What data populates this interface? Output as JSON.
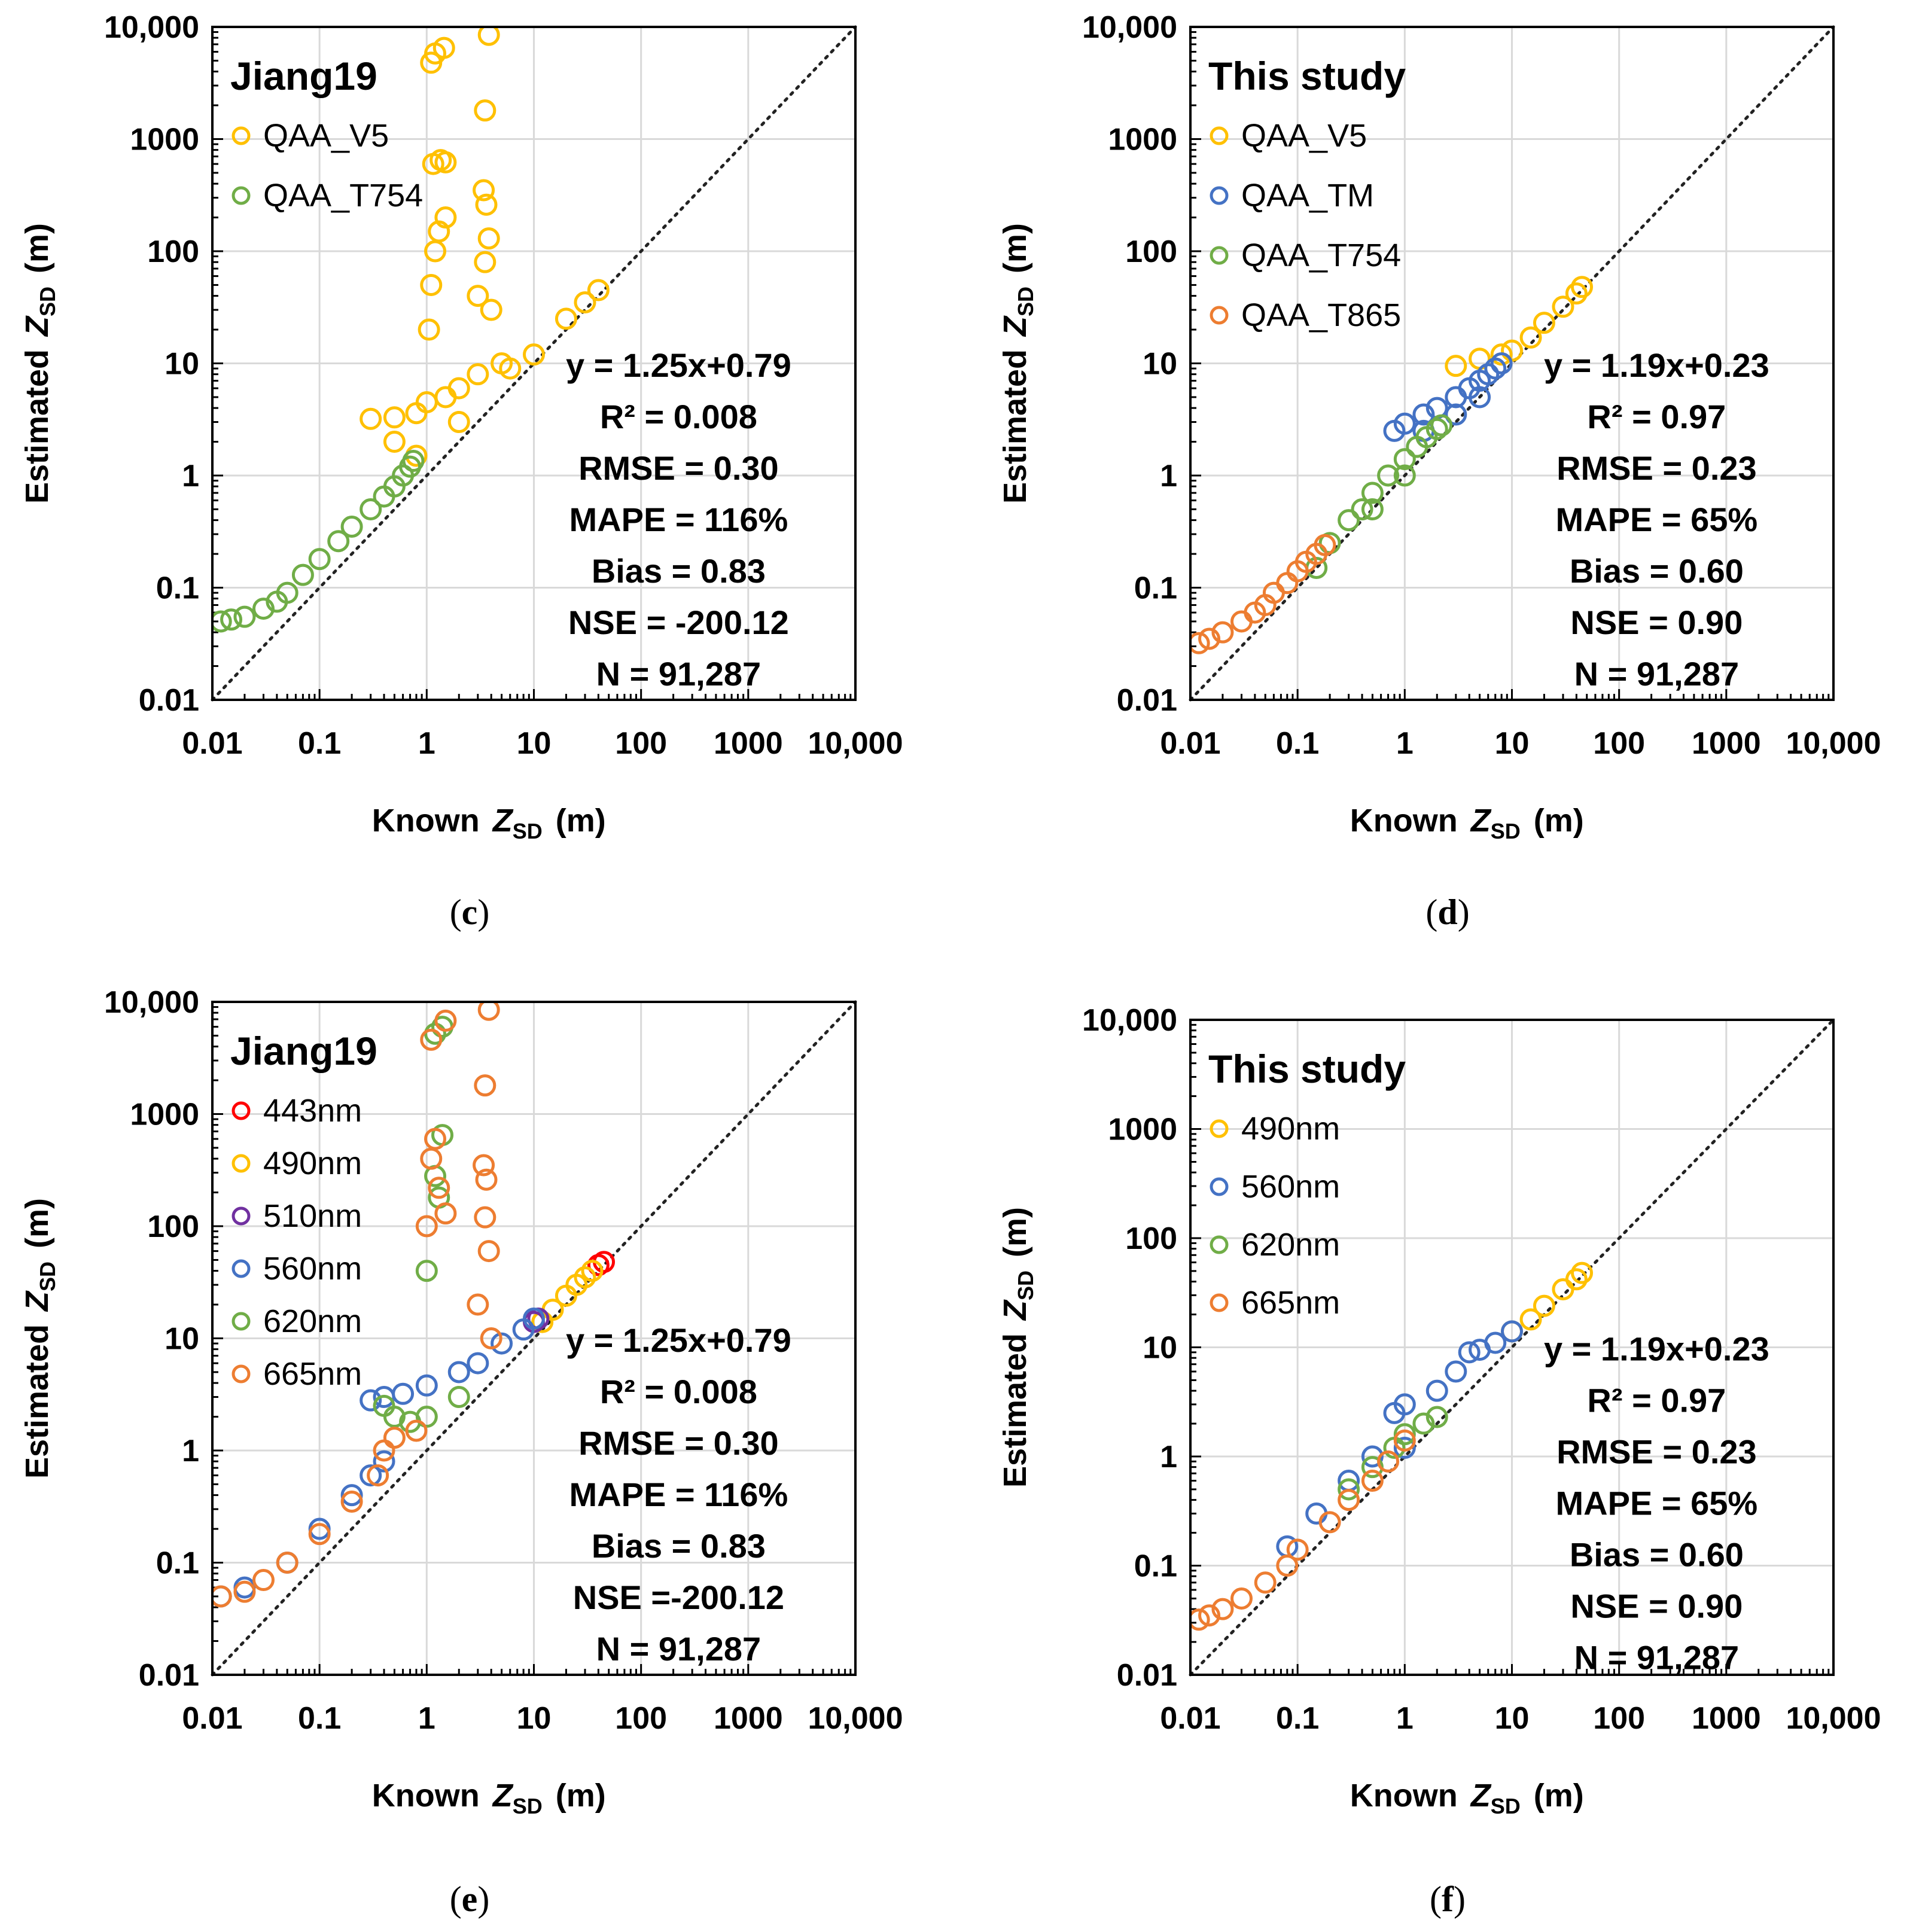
{
  "colors": {
    "QAA_V5": "#FFC000",
    "QAA_TM": "#4472C4",
    "QAA_T754": "#70AD47",
    "QAA_T865": "#ED7D31",
    "443nm": "#FF0000",
    "490nm": "#FFC000",
    "510nm": "#7030A0",
    "560nm": "#4472C4",
    "620nm": "#70AD47",
    "665nm": "#ED7D31",
    "one_to_one": "#222222"
  },
  "chart_data": [
    {
      "id": "c",
      "type": "scatter",
      "panel_label": "c",
      "title": "Jiang19",
      "xlabel": "Known",
      "ylabel": "Estimated",
      "axis_symbol": "Z",
      "axis_sub": "SD",
      "axis_unit": "(m)",
      "xscale": "log",
      "yscale": "log",
      "xlim": [
        0.01,
        10000
      ],
      "ylim": [
        0.01,
        10000
      ],
      "x_ticks": [
        "0.01",
        "0.1",
        "1",
        "10",
        "100",
        "1000",
        "10,000"
      ],
      "y_ticks": [
        "0.01",
        "0.1",
        "1",
        "10",
        "100",
        "1000",
        "10,000"
      ],
      "grid": true,
      "reference_line": "1:1",
      "legend_position": "top-left",
      "series": [
        {
          "name": "QAA_V5",
          "points": [
            [
              0.3,
              3.2
            ],
            [
              0.5,
              3.3
            ],
            [
              0.8,
              3.6
            ],
            [
              1.0,
              4.5
            ],
            [
              1.5,
              5
            ],
            [
              2,
              6
            ],
            [
              3,
              8
            ],
            [
              5,
              10
            ],
            [
              10,
              12
            ],
            [
              20,
              25
            ],
            [
              30,
              35
            ],
            [
              40,
              45
            ],
            [
              1.05,
              20
            ],
            [
              1.1,
              50
            ],
            [
              1.2,
              100
            ],
            [
              1.3,
              150
            ],
            [
              1.5,
              200
            ],
            [
              1.15,
              600
            ],
            [
              1.35,
              650
            ],
            [
              1.5,
              620
            ],
            [
              1.1,
              4800
            ],
            [
              1.2,
              5800
            ],
            [
              1.45,
              6500
            ],
            [
              3.4,
              350
            ],
            [
              3.6,
              260
            ],
            [
              3.8,
              130
            ],
            [
              3.0,
              40
            ],
            [
              3.5,
              80
            ],
            [
              4.0,
              30
            ],
            [
              3.5,
              1800
            ],
            [
              3.8,
              8500
            ],
            [
              0.5,
              2.0
            ],
            [
              0.8,
              1.5
            ],
            [
              2.0,
              3.0
            ],
            [
              6,
              9
            ]
          ]
        },
        {
          "name": "QAA_T754",
          "points": [
            [
              0.012,
              0.05
            ],
            [
              0.015,
              0.052
            ],
            [
              0.02,
              0.055
            ],
            [
              0.03,
              0.065
            ],
            [
              0.04,
              0.075
            ],
            [
              0.05,
              0.09
            ],
            [
              0.07,
              0.13
            ],
            [
              0.1,
              0.18
            ],
            [
              0.15,
              0.26
            ],
            [
              0.2,
              0.35
            ],
            [
              0.3,
              0.5
            ],
            [
              0.4,
              0.65
            ],
            [
              0.5,
              0.8
            ],
            [
              0.6,
              1.0
            ],
            [
              0.7,
              1.2
            ],
            [
              0.75,
              1.35
            ]
          ]
        }
      ],
      "annotations": [
        "y = 1.25x+0.79",
        "R² = 0.008",
        "RMSE = 0.30",
        "MAPE = 116%",
        "Bias = 0.83",
        "NSE = -200.12",
        "N = 91,287"
      ]
    },
    {
      "id": "d",
      "type": "scatter",
      "panel_label": "d",
      "title": "This study",
      "xlabel": "Known",
      "ylabel": "Estimated",
      "axis_symbol": "Z",
      "axis_sub": "SD",
      "axis_unit": "(m)",
      "xscale": "log",
      "yscale": "log",
      "xlim": [
        0.01,
        10000
      ],
      "ylim": [
        0.01,
        10000
      ],
      "x_ticks": [
        "0.01",
        "0.1",
        "1",
        "10",
        "100",
        "1000",
        "10,000"
      ],
      "y_ticks": [
        "0.01",
        "0.1",
        "1",
        "10",
        "100",
        "1000",
        "10,000"
      ],
      "grid": true,
      "reference_line": "1:1",
      "legend_position": "top-left",
      "series": [
        {
          "name": "QAA_V5",
          "points": [
            [
              3,
              9.5
            ],
            [
              5,
              11
            ],
            [
              8,
              12
            ],
            [
              10,
              13
            ],
            [
              15,
              17
            ],
            [
              20,
              23
            ],
            [
              30,
              32
            ],
            [
              40,
              42
            ],
            [
              45,
              48
            ]
          ]
        },
        {
          "name": "QAA_TM",
          "points": [
            [
              0.8,
              2.5
            ],
            [
              1.0,
              2.9
            ],
            [
              1.5,
              3.5
            ],
            [
              2,
              4
            ],
            [
              3,
              5
            ],
            [
              4,
              6
            ],
            [
              5,
              7
            ],
            [
              6,
              8
            ],
            [
              7,
              9
            ],
            [
              8,
              10
            ],
            [
              1.5,
              2.5
            ],
            [
              3,
              3.5
            ],
            [
              5,
              5
            ]
          ]
        },
        {
          "name": "QAA_T754",
          "points": [
            [
              0.15,
              0.15
            ],
            [
              0.2,
              0.25
            ],
            [
              0.3,
              0.4
            ],
            [
              0.4,
              0.5
            ],
            [
              0.5,
              0.7
            ],
            [
              0.7,
              1.0
            ],
            [
              1.0,
              1.4
            ],
            [
              1.3,
              1.8
            ],
            [
              1.6,
              2.2
            ],
            [
              2.0,
              2.6
            ],
            [
              2.2,
              2.8
            ],
            [
              0.5,
              0.5
            ],
            [
              1.0,
              1.0
            ]
          ]
        },
        {
          "name": "QAA_T865",
          "points": [
            [
              0.012,
              0.032
            ],
            [
              0.015,
              0.035
            ],
            [
              0.02,
              0.04
            ],
            [
              0.03,
              0.05
            ],
            [
              0.04,
              0.06
            ],
            [
              0.05,
              0.07
            ],
            [
              0.06,
              0.09
            ],
            [
              0.08,
              0.11
            ],
            [
              0.1,
              0.14
            ],
            [
              0.12,
              0.17
            ],
            [
              0.15,
              0.2
            ],
            [
              0.18,
              0.24
            ]
          ]
        }
      ],
      "annotations": [
        "y = 1.19x+0.23",
        "R² = 0.97",
        "RMSE = 0.23",
        "MAPE = 65%",
        "Bias = 0.60",
        "NSE = 0.90",
        "N = 91,287"
      ]
    },
    {
      "id": "e",
      "type": "scatter",
      "panel_label": "e",
      "title": "Jiang19",
      "xlabel": "Known",
      "ylabel": "Estimated",
      "axis_symbol": "Z",
      "axis_sub": "SD",
      "axis_unit": "(m)",
      "xscale": "log",
      "yscale": "log",
      "xlim": [
        0.01,
        10000
      ],
      "ylim": [
        0.01,
        10000
      ],
      "x_ticks": [
        "0.01",
        "0.1",
        "1",
        "10",
        "100",
        "1000",
        "10,000"
      ],
      "y_ticks": [
        "0.01",
        "0.1",
        "1",
        "10",
        "100",
        "1000",
        "10,000"
      ],
      "grid": true,
      "reference_line": "1:1",
      "legend_position": "top-left",
      "series": [
        {
          "name": "443nm",
          "points": [
            [
              40,
              45
            ],
            [
              45,
              48
            ]
          ]
        },
        {
          "name": "490nm",
          "points": [
            [
              12,
              14
            ],
            [
              15,
              18
            ],
            [
              20,
              24
            ],
            [
              25,
              30
            ],
            [
              30,
              35
            ],
            [
              35,
              40
            ]
          ]
        },
        {
          "name": "510nm",
          "points": [
            [
              10,
              14
            ],
            [
              11,
              15
            ]
          ]
        },
        {
          "name": "560nm",
          "points": [
            [
              0.012,
              0.05
            ],
            [
              0.02,
              0.06
            ],
            [
              0.05,
              0.1
            ],
            [
              0.1,
              0.2
            ],
            [
              0.2,
              0.4
            ],
            [
              0.3,
              0.6
            ],
            [
              0.4,
              0.8
            ],
            [
              0.3,
              2.8
            ],
            [
              0.4,
              3.0
            ],
            [
              0.6,
              3.2
            ],
            [
              1.0,
              3.8
            ],
            [
              2,
              5
            ],
            [
              3,
              6
            ],
            [
              5,
              9
            ],
            [
              8,
              12
            ],
            [
              10,
              15
            ]
          ]
        },
        {
          "name": "620nm",
          "points": [
            [
              0.4,
              2.5
            ],
            [
              0.5,
              2.0
            ],
            [
              0.7,
              1.8
            ],
            [
              1.0,
              2.0
            ],
            [
              1.2,
              280
            ],
            [
              1.3,
              180
            ],
            [
              1.4,
              650
            ],
            [
              1.0,
              40
            ],
            [
              1.2,
              5200
            ],
            [
              1.4,
              6000
            ],
            [
              2,
              3
            ]
          ]
        },
        {
          "name": "665nm",
          "points": [
            [
              0.012,
              0.05
            ],
            [
              0.02,
              0.055
            ],
            [
              0.03,
              0.07
            ],
            [
              0.05,
              0.1
            ],
            [
              0.1,
              0.18
            ],
            [
              0.2,
              0.35
            ],
            [
              0.35,
              0.6
            ],
            [
              0.4,
              1.0
            ],
            [
              0.5,
              1.3
            ],
            [
              0.8,
              1.5
            ],
            [
              1.0,
              100
            ],
            [
              1.1,
              400
            ],
            [
              1.2,
              600
            ],
            [
              1.3,
              220
            ],
            [
              1.5,
              130
            ],
            [
              1.1,
              4600
            ],
            [
              1.5,
              6800
            ],
            [
              3.4,
              350
            ],
            [
              3.6,
              260
            ],
            [
              3.5,
              120
            ],
            [
              3.8,
              60
            ],
            [
              3.5,
              1800
            ],
            [
              3.8,
              8500
            ],
            [
              3,
              20
            ],
            [
              4,
              10
            ]
          ]
        }
      ],
      "annotations": [
        "y = 1.25x+0.79",
        "R² = 0.008",
        "RMSE = 0.30",
        "MAPE = 116%",
        "Bias = 0.83",
        "NSE =-200.12",
        "N = 91,287"
      ]
    },
    {
      "id": "f",
      "type": "scatter",
      "panel_label": "f",
      "title": "This study",
      "xlabel": "Known",
      "ylabel": "Estimated",
      "axis_symbol": "Z",
      "axis_sub": "SD",
      "axis_unit": "(m)",
      "xscale": "log",
      "yscale": "log",
      "xlim": [
        0.01,
        10000
      ],
      "ylim": [
        0.01,
        10000
      ],
      "x_ticks": [
        "0.01",
        "0.1",
        "1",
        "10",
        "100",
        "1000",
        "10,000"
      ],
      "y_ticks": [
        "0.01",
        "0.1",
        "1",
        "10",
        "100",
        "1000",
        "10,000"
      ],
      "grid": true,
      "reference_line": "1:1",
      "legend_position": "top-left",
      "series": [
        {
          "name": "490nm",
          "points": [
            [
              10,
              14
            ],
            [
              15,
              18
            ],
            [
              20,
              24
            ],
            [
              30,
              34
            ],
            [
              40,
              42
            ],
            [
              45,
              48
            ]
          ]
        },
        {
          "name": "560nm",
          "points": [
            [
              0.08,
              0.15
            ],
            [
              0.15,
              0.3
            ],
            [
              0.3,
              0.6
            ],
            [
              0.5,
              1.0
            ],
            [
              0.8,
              2.5
            ],
            [
              1.0,
              3.0
            ],
            [
              2,
              4
            ],
            [
              3,
              6
            ],
            [
              4,
              9
            ],
            [
              5,
              9.5
            ],
            [
              7,
              11
            ],
            [
              10,
              14
            ],
            [
              1,
              1.2
            ]
          ]
        },
        {
          "name": "620nm",
          "points": [
            [
              0.3,
              0.5
            ],
            [
              0.5,
              0.8
            ],
            [
              0.8,
              1.2
            ],
            [
              1.0,
              1.6
            ],
            [
              1.5,
              2.0
            ],
            [
              2.0,
              2.3
            ]
          ]
        },
        {
          "name": "665nm",
          "points": [
            [
              0.012,
              0.032
            ],
            [
              0.015,
              0.035
            ],
            [
              0.02,
              0.04
            ],
            [
              0.03,
              0.05
            ],
            [
              0.05,
              0.07
            ],
            [
              0.08,
              0.1
            ],
            [
              0.1,
              0.14
            ],
            [
              0.2,
              0.25
            ],
            [
              0.3,
              0.4
            ],
            [
              0.5,
              0.6
            ],
            [
              0.7,
              0.9
            ],
            [
              1.0,
              1.4
            ]
          ]
        }
      ],
      "annotations": [
        "y = 1.19x+0.23",
        "R² = 0.97",
        "RMSE = 0.23",
        "MAPE = 65%",
        "Bias = 0.60",
        "NSE = 0.90",
        "N = 91,287"
      ]
    }
  ]
}
